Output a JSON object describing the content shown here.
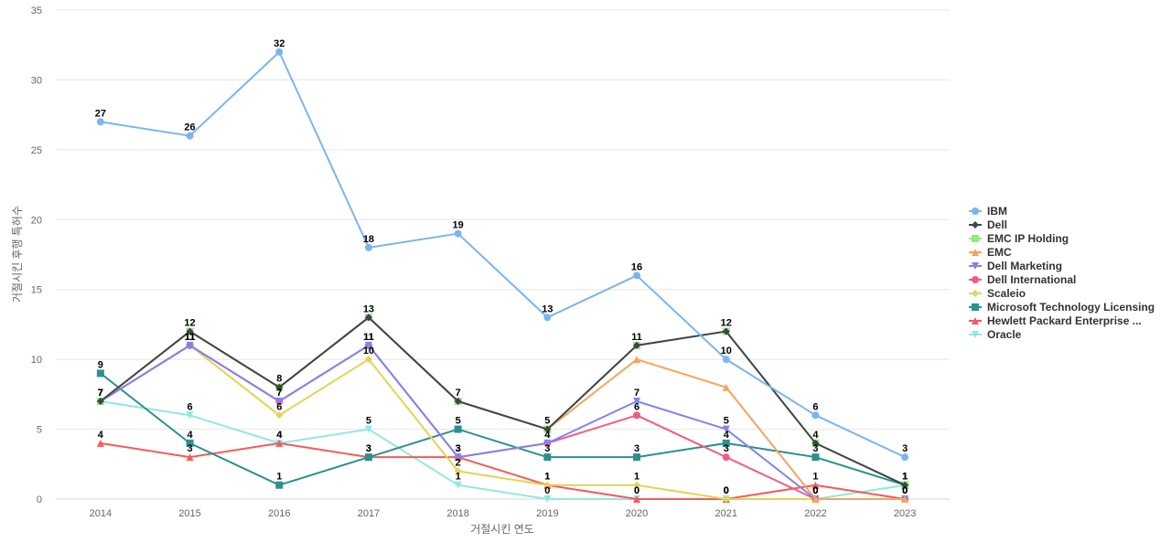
{
  "chart_data": {
    "type": "line",
    "title": "",
    "xlabel": "거절시킨 연도",
    "ylabel": "거절시킨 후행 특허수",
    "categories": [
      "2014",
      "2015",
      "2016",
      "2017",
      "2018",
      "2019",
      "2020",
      "2021",
      "2022",
      "2023"
    ],
    "ylim": [
      0,
      35
    ],
    "yticks": [
      0,
      5,
      10,
      15,
      20,
      25,
      30,
      35
    ],
    "grid": "horizontal",
    "legend_position": "right",
    "data_labels_shown_for": [
      "IBM",
      "EMC IP Holding",
      "Dell International",
      "Microsoft Technology Licensing",
      "Hewlett Packard Enterprise ...",
      "Dell Marketing",
      "Scaleio",
      "Oracle"
    ],
    "series": [
      {
        "name": "IBM",
        "color": "#7cb5ec",
        "marker": "circle",
        "values": [
          27,
          26,
          32,
          18,
          19,
          13,
          16,
          10,
          6,
          3
        ]
      },
      {
        "name": "Dell",
        "color": "#434348",
        "marker": "diamond",
        "values": [
          7,
          12,
          8,
          13,
          7,
          5,
          11,
          12,
          4,
          1
        ]
      },
      {
        "name": "EMC IP Holding",
        "color": "#90ed7d",
        "marker": "square",
        "values": [
          7,
          12,
          8,
          13,
          7,
          5,
          11,
          12,
          4,
          1
        ]
      },
      {
        "name": "EMC",
        "color": "#f7a35c",
        "marker": "triangle",
        "values": [
          7,
          12,
          8,
          13,
          7,
          5,
          10,
          8,
          0,
          0
        ]
      },
      {
        "name": "Dell Marketing",
        "color": "#8085e9",
        "marker": "triangle-down",
        "values": [
          7,
          11,
          7,
          11,
          3,
          4,
          7,
          5,
          0,
          0
        ]
      },
      {
        "name": "Dell International",
        "color": "#f15c80",
        "marker": "circle",
        "values": [
          7,
          11,
          7,
          11,
          3,
          4,
          6,
          3,
          0,
          0
        ]
      },
      {
        "name": "Scaleio",
        "color": "#e4d354",
        "marker": "diamond",
        "values": [
          7,
          11,
          6,
          10,
          2,
          1,
          1,
          0,
          0,
          0
        ]
      },
      {
        "name": "Microsoft Technology Licensing",
        "color": "#2b908f",
        "marker": "square",
        "values": [
          9,
          4,
          1,
          3,
          5,
          3,
          3,
          4,
          3,
          1
        ]
      },
      {
        "name": "Hewlett Packard Enterprise ...",
        "color": "#f45b5b",
        "marker": "triangle",
        "values": [
          4,
          3,
          4,
          3,
          3,
          1,
          0,
          0,
          1,
          0
        ]
      },
      {
        "name": "Oracle",
        "color": "#91e8e1",
        "marker": "triangle-down",
        "values": [
          7,
          6,
          4,
          5,
          1,
          0,
          0,
          0,
          0,
          1
        ]
      }
    ]
  }
}
